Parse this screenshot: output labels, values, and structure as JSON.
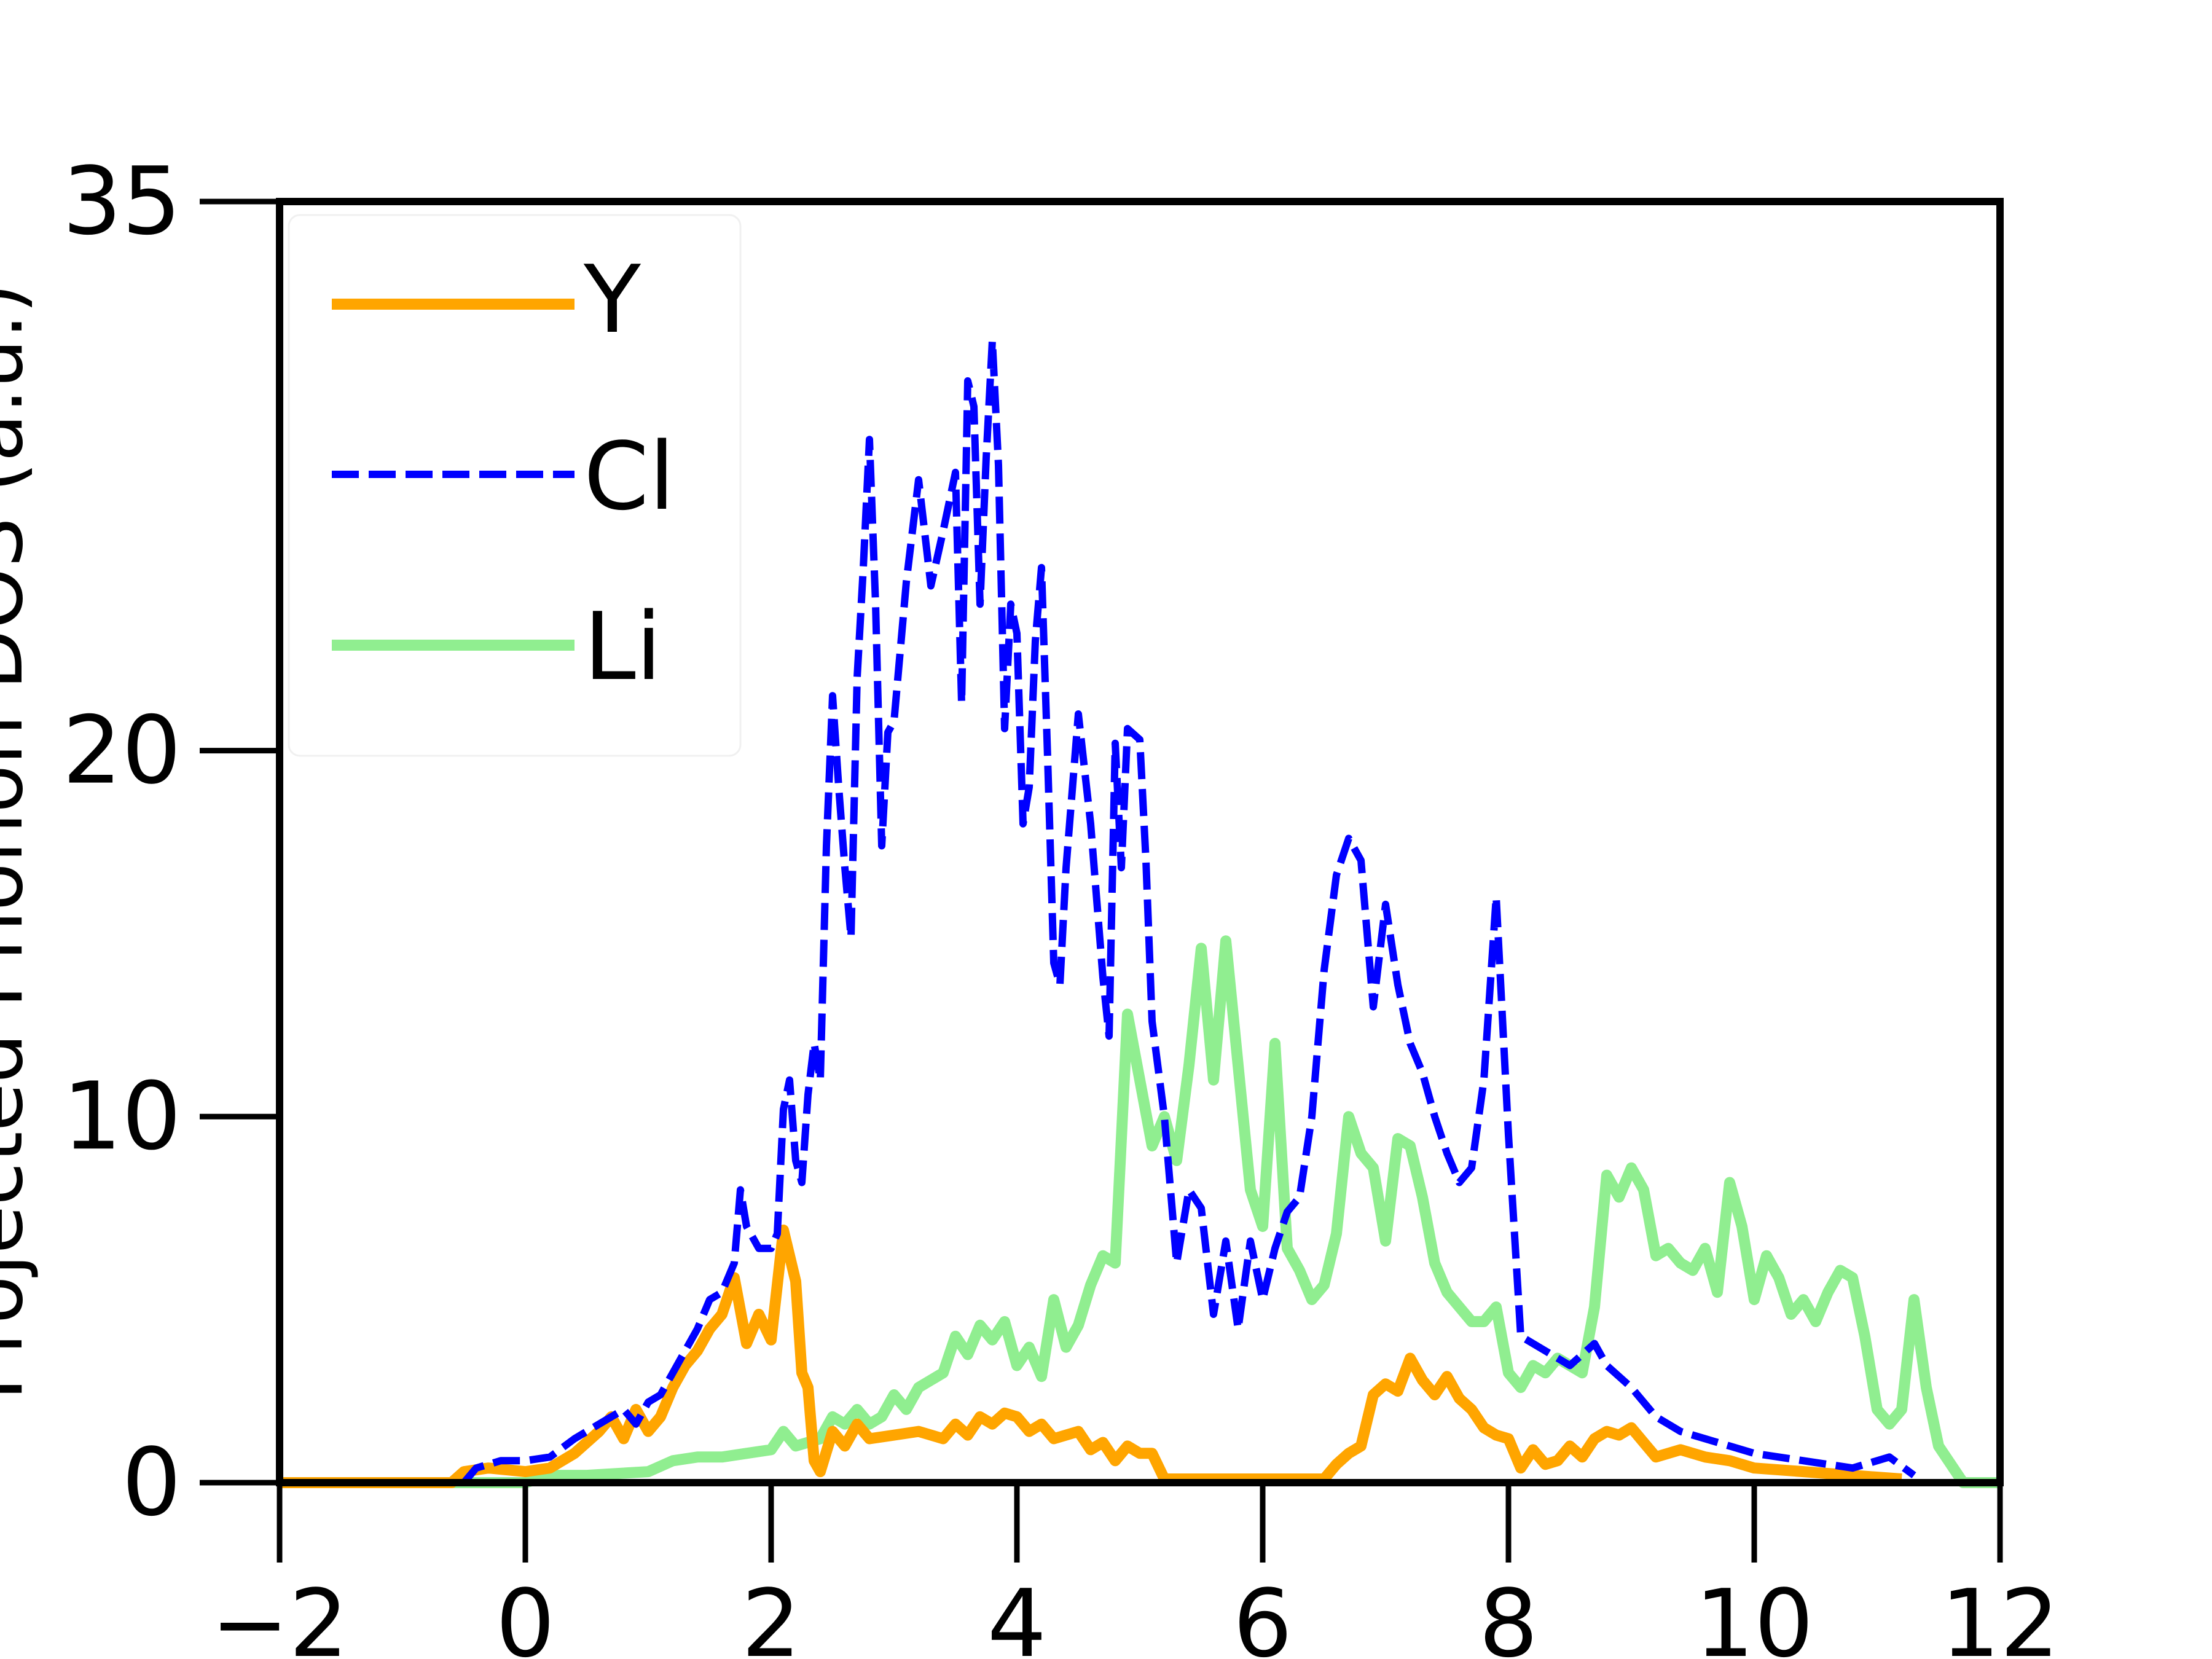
{
  "chart_data": {
    "type": "line",
    "title": "",
    "xlabel": "",
    "ylabel": "Projected Phonon DOS (a.u.)",
    "xlim": [
      -2,
      12
    ],
    "ylim": [
      0,
      35
    ],
    "xticks": [
      -2,
      0,
      2,
      4,
      6,
      8,
      10,
      12
    ],
    "xtick_labels": [
      "−2",
      "0",
      "2",
      "4",
      "6",
      "8",
      "10",
      "12"
    ],
    "yticks": [
      0,
      10,
      20,
      35
    ],
    "ytick_labels": [
      "0",
      "10",
      "20",
      "35"
    ],
    "grid": false,
    "legend_position": "upper-left",
    "series": [
      {
        "name": "Y",
        "color": "#FFA500",
        "style": "solid",
        "points": [
          [
            -2,
            0
          ],
          [
            -0.6,
            0
          ],
          [
            -0.5,
            0.3
          ],
          [
            -0.3,
            0.4
          ],
          [
            0,
            0.3
          ],
          [
            0.2,
            0.4
          ],
          [
            0.4,
            0.8
          ],
          [
            0.6,
            1.4
          ],
          [
            0.7,
            1.8
          ],
          [
            0.8,
            1.2
          ],
          [
            0.9,
            2.0
          ],
          [
            1.0,
            1.4
          ],
          [
            1.1,
            1.8
          ],
          [
            1.2,
            2.6
          ],
          [
            1.3,
            3.2
          ],
          [
            1.4,
            3.6
          ],
          [
            1.5,
            4.2
          ],
          [
            1.6,
            4.6
          ],
          [
            1.7,
            5.6
          ],
          [
            1.8,
            3.8
          ],
          [
            1.9,
            4.6
          ],
          [
            2.0,
            3.9
          ],
          [
            2.1,
            6.9
          ],
          [
            2.2,
            5.5
          ],
          [
            2.25,
            3.0
          ],
          [
            2.3,
            2.6
          ],
          [
            2.35,
            0.6
          ],
          [
            2.4,
            0.3
          ],
          [
            2.5,
            1.4
          ],
          [
            2.6,
            1.0
          ],
          [
            2.7,
            1.6
          ],
          [
            2.8,
            1.2
          ],
          [
            3.0,
            1.3
          ],
          [
            3.2,
            1.4
          ],
          [
            3.4,
            1.2
          ],
          [
            3.5,
            1.6
          ],
          [
            3.6,
            1.3
          ],
          [
            3.7,
            1.8
          ],
          [
            3.8,
            1.6
          ],
          [
            3.9,
            1.9
          ],
          [
            4.0,
            1.8
          ],
          [
            4.1,
            1.4
          ],
          [
            4.2,
            1.6
          ],
          [
            4.3,
            1.2
          ],
          [
            4.5,
            1.4
          ],
          [
            4.6,
            0.9
          ],
          [
            4.7,
            1.1
          ],
          [
            4.8,
            0.6
          ],
          [
            4.9,
            1.0
          ],
          [
            5.0,
            0.8
          ],
          [
            5.1,
            0.8
          ],
          [
            5.2,
            0.1
          ],
          [
            5.4,
            0.1
          ],
          [
            6.0,
            0.1
          ],
          [
            6.5,
            0.1
          ],
          [
            6.6,
            0.5
          ],
          [
            6.7,
            0.8
          ],
          [
            6.8,
            1.0
          ],
          [
            6.9,
            2.4
          ],
          [
            7.0,
            2.7
          ],
          [
            7.1,
            2.5
          ],
          [
            7.2,
            3.4
          ],
          [
            7.3,
            2.8
          ],
          [
            7.4,
            2.4
          ],
          [
            7.5,
            2.9
          ],
          [
            7.6,
            2.3
          ],
          [
            7.7,
            2.0
          ],
          [
            7.8,
            1.5
          ],
          [
            7.9,
            1.3
          ],
          [
            8.0,
            1.2
          ],
          [
            8.1,
            0.4
          ],
          [
            8.2,
            0.9
          ],
          [
            8.3,
            0.5
          ],
          [
            8.4,
            0.6
          ],
          [
            8.5,
            1.0
          ],
          [
            8.6,
            0.7
          ],
          [
            8.7,
            1.2
          ],
          [
            8.8,
            1.4
          ],
          [
            8.9,
            1.3
          ],
          [
            9.0,
            1.5
          ],
          [
            9.1,
            1.1
          ],
          [
            9.2,
            0.7
          ],
          [
            9.4,
            0.9
          ],
          [
            9.6,
            0.7
          ],
          [
            9.8,
            0.6
          ],
          [
            10.0,
            0.4
          ],
          [
            10.4,
            0.3
          ],
          [
            10.8,
            0.2
          ],
          [
            11.2,
            0.1
          ]
        ]
      },
      {
        "name": "Cl",
        "color": "#0000FF",
        "style": "dashed",
        "points": [
          [
            -2,
            0
          ],
          [
            -0.5,
            0
          ],
          [
            -0.4,
            0.4
          ],
          [
            -0.2,
            0.6
          ],
          [
            0,
            0.6
          ],
          [
            0.2,
            0.7
          ],
          [
            0.4,
            1.2
          ],
          [
            0.6,
            1.6
          ],
          [
            0.8,
            2.0
          ],
          [
            0.9,
            1.6
          ],
          [
            1.0,
            2.2
          ],
          [
            1.1,
            2.4
          ],
          [
            1.2,
            3.0
          ],
          [
            1.3,
            3.6
          ],
          [
            1.4,
            4.2
          ],
          [
            1.5,
            5.0
          ],
          [
            1.6,
            5.2
          ],
          [
            1.7,
            6.0
          ],
          [
            1.75,
            8.0
          ],
          [
            1.8,
            7.0
          ],
          [
            1.9,
            6.4
          ],
          [
            2.0,
            6.4
          ],
          [
            2.05,
            6.8
          ],
          [
            2.1,
            10.2
          ],
          [
            2.15,
            11.0
          ],
          [
            2.2,
            8.8
          ],
          [
            2.25,
            8.2
          ],
          [
            2.3,
            10.6
          ],
          [
            2.35,
            12.0
          ],
          [
            2.4,
            11.0
          ],
          [
            2.45,
            17.4
          ],
          [
            2.5,
            21.5
          ],
          [
            2.55,
            19.0
          ],
          [
            2.6,
            16.8
          ],
          [
            2.65,
            14.9
          ],
          [
            2.7,
            22.0
          ],
          [
            2.75,
            25.0
          ],
          [
            2.8,
            28.5
          ],
          [
            2.85,
            24.0
          ],
          [
            2.9,
            17.4
          ],
          [
            2.95,
            20.5
          ],
          [
            3.0,
            20.8
          ],
          [
            3.1,
            24.6
          ],
          [
            3.2,
            27.4
          ],
          [
            3.3,
            24.5
          ],
          [
            3.4,
            26.0
          ],
          [
            3.5,
            27.6
          ],
          [
            3.55,
            21.3
          ],
          [
            3.6,
            30.1
          ],
          [
            3.65,
            29.4
          ],
          [
            3.7,
            24.0
          ],
          [
            3.75,
            28.0
          ],
          [
            3.8,
            31.2
          ],
          [
            3.85,
            27.8
          ],
          [
            3.9,
            20.6
          ],
          [
            3.95,
            24.0
          ],
          [
            4.0,
            23.2
          ],
          [
            4.05,
            18.0
          ],
          [
            4.1,
            19.0
          ],
          [
            4.15,
            23.0
          ],
          [
            4.2,
            25.0
          ],
          [
            4.25,
            19.8
          ],
          [
            4.3,
            14.2
          ],
          [
            4.35,
            13.6
          ],
          [
            4.4,
            16.8
          ],
          [
            4.5,
            21.0
          ],
          [
            4.6,
            18.0
          ],
          [
            4.7,
            13.8
          ],
          [
            4.75,
            12.2
          ],
          [
            4.8,
            20.2
          ],
          [
            4.85,
            16.8
          ],
          [
            4.9,
            20.6
          ],
          [
            5.0,
            20.3
          ],
          [
            5.05,
            17.0
          ],
          [
            5.1,
            12.6
          ],
          [
            5.2,
            10.0
          ],
          [
            5.3,
            6.0
          ],
          [
            5.4,
            8.0
          ],
          [
            5.5,
            7.5
          ],
          [
            5.6,
            4.6
          ],
          [
            5.7,
            6.6
          ],
          [
            5.8,
            4.2
          ],
          [
            5.9,
            6.6
          ],
          [
            6.0,
            5.0
          ],
          [
            6.1,
            6.4
          ],
          [
            6.2,
            7.4
          ],
          [
            6.3,
            7.8
          ],
          [
            6.4,
            10.0
          ],
          [
            6.5,
            14.0
          ],
          [
            6.6,
            16.6
          ],
          [
            6.7,
            17.6
          ],
          [
            6.8,
            17.0
          ],
          [
            6.9,
            13.0
          ],
          [
            7.0,
            15.8
          ],
          [
            7.1,
            13.6
          ],
          [
            7.2,
            12.0
          ],
          [
            7.3,
            11.2
          ],
          [
            7.4,
            10.0
          ],
          [
            7.5,
            9.0
          ],
          [
            7.6,
            8.2
          ],
          [
            7.7,
            8.6
          ],
          [
            7.8,
            11.0
          ],
          [
            7.9,
            16.0
          ],
          [
            8.0,
            9.5
          ],
          [
            8.1,
            4.0
          ],
          [
            8.3,
            3.6
          ],
          [
            8.5,
            3.2
          ],
          [
            8.7,
            3.8
          ],
          [
            8.8,
            3.2
          ],
          [
            9.0,
            2.6
          ],
          [
            9.2,
            1.8
          ],
          [
            9.4,
            1.4
          ],
          [
            9.6,
            1.2
          ],
          [
            9.8,
            1.0
          ],
          [
            10.0,
            0.8
          ],
          [
            10.4,
            0.6
          ],
          [
            10.8,
            0.4
          ],
          [
            11.1,
            0.7
          ],
          [
            11.3,
            0.2
          ]
        ]
      },
      {
        "name": "Li",
        "color": "#90EE90",
        "style": "solid",
        "points": [
          [
            -2,
            0
          ],
          [
            0,
            0
          ],
          [
            0.2,
            0.2
          ],
          [
            0.5,
            0.2
          ],
          [
            1.0,
            0.3
          ],
          [
            1.2,
            0.6
          ],
          [
            1.4,
            0.7
          ],
          [
            1.6,
            0.7
          ],
          [
            1.8,
            0.8
          ],
          [
            2.0,
            0.9
          ],
          [
            2.1,
            1.4
          ],
          [
            2.2,
            1.0
          ],
          [
            2.4,
            1.2
          ],
          [
            2.5,
            1.8
          ],
          [
            2.6,
            1.6
          ],
          [
            2.7,
            2.0
          ],
          [
            2.8,
            1.6
          ],
          [
            2.9,
            1.8
          ],
          [
            3.0,
            2.4
          ],
          [
            3.1,
            2.0
          ],
          [
            3.2,
            2.6
          ],
          [
            3.3,
            2.8
          ],
          [
            3.4,
            3.0
          ],
          [
            3.5,
            4.0
          ],
          [
            3.6,
            3.5
          ],
          [
            3.7,
            4.3
          ],
          [
            3.8,
            3.9
          ],
          [
            3.9,
            4.4
          ],
          [
            4.0,
            3.2
          ],
          [
            4.1,
            3.7
          ],
          [
            4.2,
            2.9
          ],
          [
            4.3,
            5.0
          ],
          [
            4.4,
            3.7
          ],
          [
            4.5,
            4.3
          ],
          [
            4.6,
            5.4
          ],
          [
            4.7,
            6.2
          ],
          [
            4.8,
            6.0
          ],
          [
            4.9,
            12.8
          ],
          [
            5.0,
            11.0
          ],
          [
            5.1,
            9.2
          ],
          [
            5.2,
            10.0
          ],
          [
            5.3,
            8.8
          ],
          [
            5.4,
            11.4
          ],
          [
            5.5,
            14.6
          ],
          [
            5.6,
            11.0
          ],
          [
            5.7,
            14.8
          ],
          [
            5.8,
            11.4
          ],
          [
            5.9,
            8.0
          ],
          [
            6.0,
            7.0
          ],
          [
            6.1,
            12.0
          ],
          [
            6.2,
            6.4
          ],
          [
            6.3,
            5.8
          ],
          [
            6.4,
            5.0
          ],
          [
            6.5,
            5.4
          ],
          [
            6.6,
            6.8
          ],
          [
            6.7,
            10.0
          ],
          [
            6.8,
            9.0
          ],
          [
            6.9,
            8.6
          ],
          [
            7.0,
            6.6
          ],
          [
            7.1,
            9.4
          ],
          [
            7.2,
            9.2
          ],
          [
            7.3,
            7.8
          ],
          [
            7.4,
            6.0
          ],
          [
            7.5,
            5.2
          ],
          [
            7.6,
            4.8
          ],
          [
            7.7,
            4.4
          ],
          [
            7.8,
            4.4
          ],
          [
            7.9,
            4.8
          ],
          [
            8.0,
            3.0
          ],
          [
            8.1,
            2.6
          ],
          [
            8.2,
            3.2
          ],
          [
            8.3,
            3.0
          ],
          [
            8.4,
            3.4
          ],
          [
            8.5,
            3.2
          ],
          [
            8.6,
            3.0
          ],
          [
            8.7,
            4.8
          ],
          [
            8.8,
            8.4
          ],
          [
            8.9,
            7.8
          ],
          [
            9.0,
            8.6
          ],
          [
            9.1,
            8.0
          ],
          [
            9.2,
            6.2
          ],
          [
            9.3,
            6.4
          ],
          [
            9.4,
            6.0
          ],
          [
            9.5,
            5.8
          ],
          [
            9.6,
            6.4
          ],
          [
            9.7,
            5.2
          ],
          [
            9.8,
            8.2
          ],
          [
            9.9,
            7.0
          ],
          [
            10.0,
            5.0
          ],
          [
            10.1,
            6.2
          ],
          [
            10.2,
            5.6
          ],
          [
            10.3,
            4.6
          ],
          [
            10.4,
            5.0
          ],
          [
            10.5,
            4.4
          ],
          [
            10.6,
            5.2
          ],
          [
            10.7,
            5.8
          ],
          [
            10.8,
            5.6
          ],
          [
            10.9,
            4.0
          ],
          [
            11.0,
            2.0
          ],
          [
            11.1,
            1.6
          ],
          [
            11.2,
            2.0
          ],
          [
            11.3,
            5.0
          ],
          [
            11.4,
            2.6
          ],
          [
            11.5,
            1.0
          ],
          [
            11.7,
            0
          ],
          [
            12,
            0
          ]
        ]
      }
    ]
  }
}
